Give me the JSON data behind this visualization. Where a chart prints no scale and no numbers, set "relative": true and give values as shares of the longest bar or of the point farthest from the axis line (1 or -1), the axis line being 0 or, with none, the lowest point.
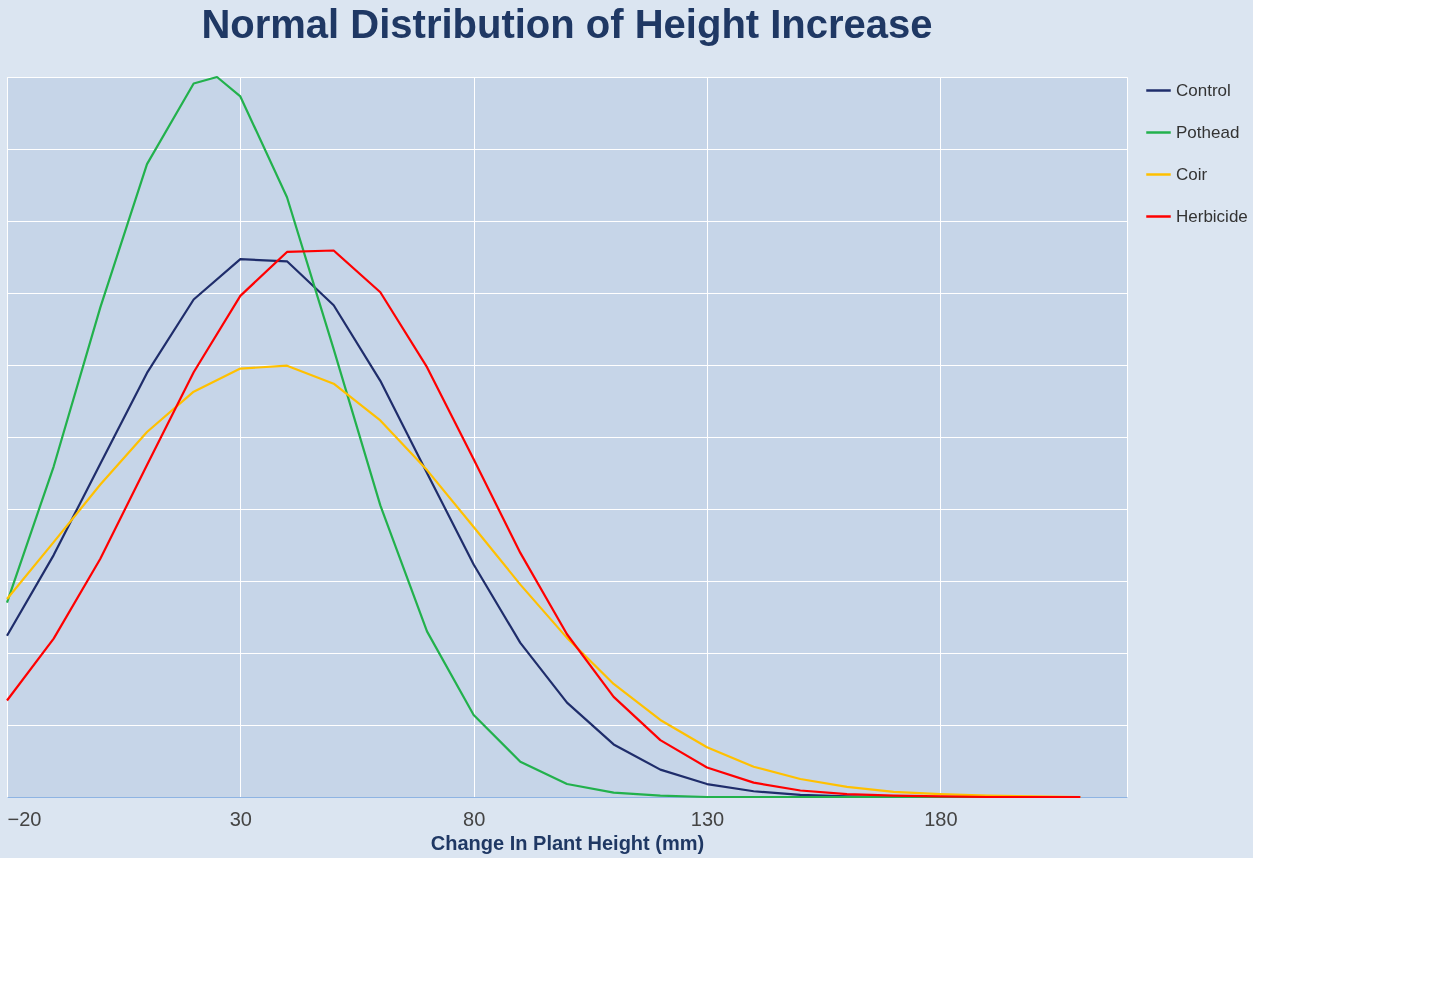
{
  "chart_data": {
    "type": "line",
    "title": "Normal Distribution of Height Increase",
    "xlabel": "Change In Plant Height (mm)",
    "relative": true,
    "x": [
      -20,
      -10,
      0,
      10,
      20,
      30,
      40,
      50,
      60,
      70,
      80,
      90,
      100,
      110,
      120,
      130,
      140,
      150,
      160,
      170,
      180,
      190,
      200,
      210
    ],
    "xlim": [
      -20,
      220
    ],
    "xticks": [
      -20,
      30,
      80,
      130,
      180
    ],
    "grid": true,
    "legend": "right",
    "line_style": "solid",
    "marker": "none",
    "series": [
      {
        "name": "Control",
        "color": "#1f2d6b",
        "values": [
          0.224,
          0.336,
          0.463,
          0.589,
          0.691,
          0.747,
          0.744,
          0.683,
          0.578,
          0.45,
          0.323,
          0.214,
          0.131,
          0.073,
          0.038,
          0.018,
          0.008,
          0.003,
          0.001,
          0,
          null,
          null,
          null,
          null
        ]
      },
      {
        "name": "Pothead",
        "color": "#22b14c",
        "x": [
          -20,
          -10,
          0,
          10,
          20,
          25,
          30,
          40,
          50,
          60,
          70,
          80,
          90,
          100,
          110,
          120,
          130,
          140,
          150,
          160,
          170,
          180,
          190
        ],
        "values": [
          0.27,
          0.459,
          0.68,
          0.879,
          0.991,
          1,
          0.973,
          0.833,
          0.622,
          0.405,
          0.23,
          0.114,
          0.049,
          0.018,
          0.006,
          0.002,
          0,
          0,
          0,
          0,
          0,
          0,
          0
        ]
      },
      {
        "name": "Coir",
        "color": "#ffc000",
        "values": [
          0.275,
          0.354,
          0.434,
          0.507,
          0.563,
          0.595,
          0.599,
          0.574,
          0.523,
          0.454,
          0.375,
          0.295,
          0.221,
          0.157,
          0.107,
          0.069,
          0.042,
          0.025,
          0.014,
          0.007,
          0.004,
          0.002,
          0.001,
          0
        ]
      },
      {
        "name": "Herbicide",
        "color": "#ff0000",
        "values": [
          0.134,
          0.22,
          0.331,
          0.461,
          0.59,
          0.696,
          0.757,
          0.759,
          0.701,
          0.597,
          0.469,
          0.339,
          0.226,
          0.139,
          0.079,
          0.041,
          0.02,
          0.009,
          0.004,
          0.002,
          0.001,
          0,
          0,
          0
        ]
      }
    ]
  }
}
